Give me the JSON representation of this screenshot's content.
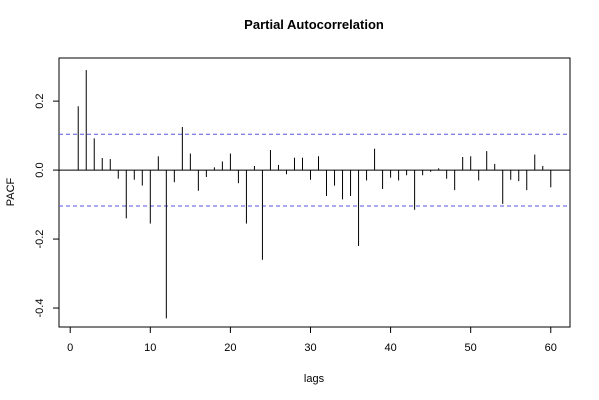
{
  "chart_data": {
    "type": "bar",
    "title": "Partial Autocorrelation",
    "xlabel": "lags",
    "ylabel": "PACF",
    "xlim": [
      -1.4,
      62.4
    ],
    "ylim": [
      -0.455,
      0.325
    ],
    "x_ticks": [
      0,
      10,
      20,
      30,
      40,
      50,
      60
    ],
    "y_ticks": [
      -0.4,
      -0.2,
      0.0,
      0.2
    ],
    "y_tick_labels": [
      "-0.4",
      "-0.2",
      "0.0",
      "0.2"
    ],
    "x_tick_labels": [
      "0",
      "10",
      "20",
      "30",
      "40",
      "50",
      "60"
    ],
    "confidence_bound": 0.104,
    "confidence_color": "#5555dd",
    "bar_color": "#000000",
    "grid": false,
    "lags": [
      1,
      2,
      3,
      4,
      5,
      6,
      7,
      8,
      9,
      10,
      11,
      12,
      13,
      14,
      15,
      16,
      17,
      18,
      19,
      20,
      21,
      22,
      23,
      24,
      25,
      26,
      27,
      28,
      29,
      30,
      31,
      32,
      33,
      34,
      35,
      36,
      37,
      38,
      39,
      40,
      41,
      42,
      43,
      44,
      45,
      46,
      47,
      48,
      49,
      50,
      51,
      52,
      53,
      54,
      55,
      56,
      57,
      58,
      59,
      60
    ],
    "values": [
      0.185,
      0.29,
      0.092,
      0.035,
      0.032,
      -0.025,
      -0.14,
      -0.028,
      -0.045,
      -0.155,
      0.04,
      -0.43,
      -0.035,
      0.125,
      0.048,
      -0.06,
      -0.02,
      0.008,
      0.025,
      0.048,
      -0.038,
      -0.155,
      0.012,
      -0.26,
      0.058,
      0.015,
      -0.012,
      0.036,
      0.036,
      -0.028,
      0.04,
      -0.075,
      -0.045,
      -0.085,
      -0.075,
      -0.22,
      -0.03,
      0.062,
      -0.055,
      -0.022,
      -0.03,
      -0.015,
      -0.115,
      -0.015,
      -0.005,
      0.005,
      -0.025,
      -0.058,
      0.038,
      0.04,
      -0.03,
      0.055,
      0.018,
      -0.098,
      -0.028,
      -0.032,
      -0.058,
      0.045,
      0.012,
      -0.05
    ]
  }
}
